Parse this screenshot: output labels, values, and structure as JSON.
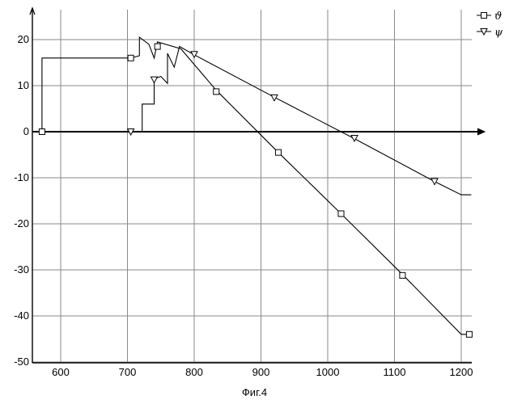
{
  "caption": "Фиг.4",
  "chart_data": {
    "type": "line",
    "title": "",
    "xlabel": "",
    "ylabel": "",
    "xlim": [
      535,
      1210
    ],
    "ylim": [
      -50,
      25
    ],
    "xticks": [
      600,
      700,
      800,
      900,
      1000,
      1100,
      1200
    ],
    "yticks": [
      -50,
      -40,
      -30,
      -20,
      -10,
      0,
      10,
      20
    ],
    "grid": true,
    "legend_position": "top-right",
    "series": [
      {
        "name": "ϑ",
        "marker": "square",
        "points": [
          [
            572,
            0
          ],
          [
            572,
            16
          ],
          [
            705,
            16
          ],
          [
            718,
            16.5
          ],
          [
            718,
            20.5
          ],
          [
            732,
            19
          ],
          [
            740,
            16
          ],
          [
            745,
            19.5
          ],
          [
            780,
            18
          ],
          [
            833,
            9
          ],
          [
            926,
            -4.5
          ],
          [
            1020,
            -17.8
          ],
          [
            1112,
            -31
          ],
          [
            1200,
            -44
          ],
          [
            1215,
            -44
          ]
        ],
        "markers": [
          [
            572,
            0
          ],
          [
            705,
            16
          ],
          [
            745,
            18.5
          ],
          [
            833,
            8.7
          ],
          [
            926,
            -4.5
          ],
          [
            1020,
            -17.8
          ],
          [
            1112,
            -31.2
          ],
          [
            1212,
            -44
          ]
        ]
      },
      {
        "name": "ψ",
        "marker": "triangle-down",
        "points": [
          [
            705,
            0
          ],
          [
            722,
            0
          ],
          [
            722,
            6
          ],
          [
            740,
            6
          ],
          [
            740,
            11.5
          ],
          [
            750,
            12
          ],
          [
            760,
            10.5
          ],
          [
            760,
            17
          ],
          [
            770,
            14
          ],
          [
            778,
            18.5
          ],
          [
            800,
            16.7
          ],
          [
            920,
            7.5
          ],
          [
            1040,
            -1.5
          ],
          [
            1160,
            -10.8
          ],
          [
            1200,
            -13.7
          ],
          [
            1215,
            -13.7
          ]
        ],
        "markers": [
          [
            705,
            0
          ],
          [
            740,
            11.3
          ],
          [
            800,
            16.8
          ],
          [
            920,
            7.4
          ],
          [
            1040,
            -1.4
          ],
          [
            1160,
            -10.8
          ]
        ]
      }
    ]
  }
}
